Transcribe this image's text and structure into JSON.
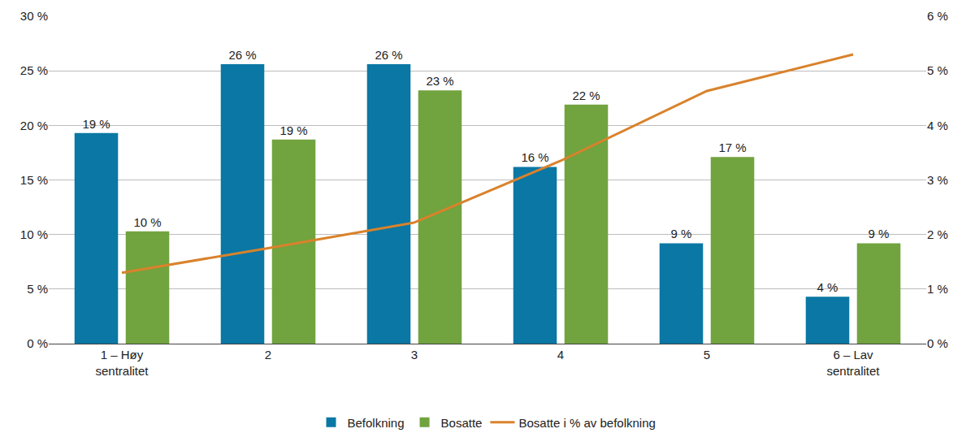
{
  "chart_data": {
    "type": "bar",
    "categories": [
      "1 – Høy\nsentralitet",
      "2",
      "3",
      "4",
      "5",
      "6 – Lav\nsentralitet"
    ],
    "series": [
      {
        "name": "Befolkning",
        "type": "bar",
        "color": "#0a77a4",
        "values": [
          19.3,
          25.6,
          25.6,
          16.2,
          9.2,
          4.3
        ],
        "value_labels": [
          "19 %",
          "26 %",
          "26 %",
          "16 %",
          "9 %",
          "4 %"
        ]
      },
      {
        "name": "Bosatte",
        "type": "bar",
        "color": "#71a33f",
        "values": [
          10.3,
          18.7,
          23.2,
          21.9,
          17.1,
          9.2
        ],
        "value_labels": [
          "10 %",
          "19 %",
          "23 %",
          "22 %",
          "17 %",
          "9 %"
        ]
      },
      {
        "name": "Bosatte i % av befolkning",
        "type": "line",
        "axis": "y2",
        "color": "#d9822b",
        "values": [
          1.3,
          1.75,
          2.22,
          3.35,
          4.63,
          5.3
        ]
      }
    ],
    "ylim": [
      0,
      30
    ],
    "yticks": [
      {
        "value": 0,
        "label": "0 %"
      },
      {
        "value": 5,
        "label": "5 %"
      },
      {
        "value": 10,
        "label": "10 %"
      },
      {
        "value": 15,
        "label": "15 %"
      },
      {
        "value": 20,
        "label": "20 %"
      },
      {
        "value": 25,
        "label": "25 %"
      },
      {
        "value": 30,
        "label": "30 %"
      }
    ],
    "y2lim": [
      0,
      6
    ],
    "y2ticks": [
      {
        "value": 0,
        "label": "0 %"
      },
      {
        "value": 1,
        "label": "1 %"
      },
      {
        "value": 2,
        "label": "2 %"
      },
      {
        "value": 3,
        "label": "3 %"
      },
      {
        "value": 4,
        "label": "4 %"
      },
      {
        "value": 5,
        "label": "5 %"
      },
      {
        "value": 6,
        "label": "6 %"
      }
    ],
    "grid": true,
    "legend": "bottom",
    "data_labels": true
  }
}
